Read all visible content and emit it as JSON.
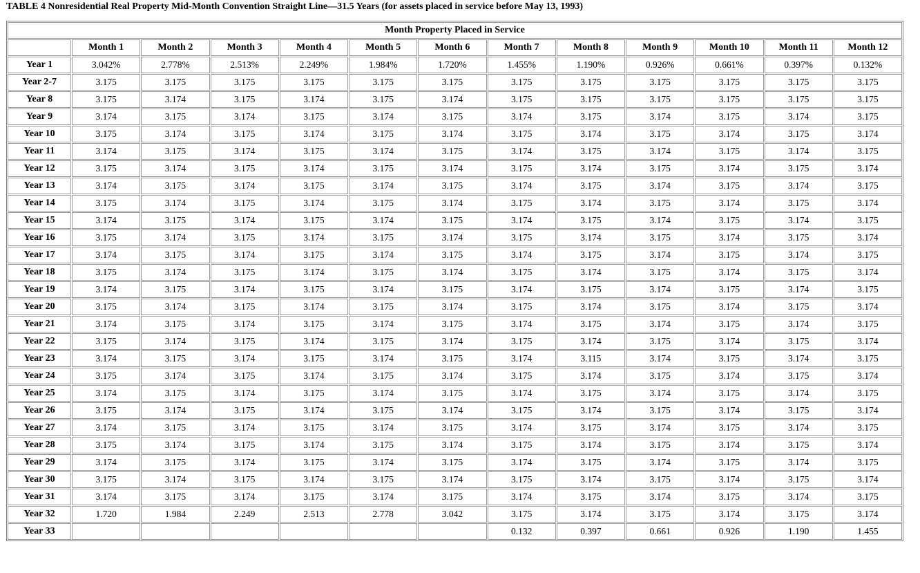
{
  "title": "TABLE 4 Nonresidential Real Property Mid-Month Convention Straight Line—31.5 Years (for assets placed in service before May 13, 1993)",
  "table": {
    "group_header": "Month Property Placed in Service",
    "columns": [
      "Month 1",
      "Month 2",
      "Month 3",
      "Month 4",
      "Month 5",
      "Month 6",
      "Month 7",
      "Month 8",
      "Month 9",
      "Month 10",
      "Month 11",
      "Month 12"
    ],
    "rows": [
      {
        "label": "Year 1",
        "cells": [
          "3.042%",
          "2.778%",
          "2.513%",
          "2.249%",
          "1.984%",
          "1.720%",
          "1.455%",
          "1.190%",
          "0.926%",
          "0.661%",
          "0.397%",
          "0.132%"
        ]
      },
      {
        "label": "Year 2-7",
        "cells": [
          "3.175",
          "3.175",
          "3.175",
          "3.175",
          "3.175",
          "3.175",
          "3.175",
          "3.175",
          "3.175",
          "3.175",
          "3.175",
          "3.175"
        ]
      },
      {
        "label": "Year 8",
        "cells": [
          "3.175",
          "3.174",
          "3.175",
          "3.174",
          "3.175",
          "3.174",
          "3.175",
          "3.175",
          "3.175",
          "3.175",
          "3.175",
          "3.175"
        ]
      },
      {
        "label": "Year 9",
        "cells": [
          "3.174",
          "3.175",
          "3.174",
          "3.175",
          "3.174",
          "3.175",
          "3.174",
          "3.175",
          "3.174",
          "3.175",
          "3.174",
          "3.175"
        ]
      },
      {
        "label": "Year 10",
        "cells": [
          "3.175",
          "3.174",
          "3.175",
          "3.174",
          "3.175",
          "3.174",
          "3.175",
          "3.174",
          "3.175",
          "3.174",
          "3.175",
          "3.174"
        ]
      },
      {
        "label": "Year 11",
        "cells": [
          "3.174",
          "3.175",
          "3.174",
          "3.175",
          "3.174",
          "3.175",
          "3.174",
          "3.175",
          "3.174",
          "3.175",
          "3.174",
          "3.175"
        ]
      },
      {
        "label": "Year 12",
        "cells": [
          "3.175",
          "3.174",
          "3.175",
          "3.174",
          "3.175",
          "3.174",
          "3.175",
          "3.174",
          "3.175",
          "3.174",
          "3.175",
          "3.174"
        ]
      },
      {
        "label": "Year 13",
        "cells": [
          "3.174",
          "3.175",
          "3.174",
          "3.175",
          "3.174",
          "3.175",
          "3.174",
          "3.175",
          "3.174",
          "3.175",
          "3.174",
          "3.175"
        ]
      },
      {
        "label": "Year 14",
        "cells": [
          "3.175",
          "3.174",
          "3.175",
          "3.174",
          "3.175",
          "3.174",
          "3.175",
          "3.174",
          "3.175",
          "3.174",
          "3.175",
          "3.174"
        ]
      },
      {
        "label": "Year 15",
        "cells": [
          "3.174",
          "3.175",
          "3.174",
          "3.175",
          "3.174",
          "3.175",
          "3.174",
          "3.175",
          "3.174",
          "3.175",
          "3.174",
          "3.175"
        ]
      },
      {
        "label": "Year 16",
        "cells": [
          "3.175",
          "3.174",
          "3.175",
          "3.174",
          "3.175",
          "3.174",
          "3.175",
          "3.174",
          "3.175",
          "3.174",
          "3.175",
          "3.174"
        ]
      },
      {
        "label": "Year 17",
        "cells": [
          "3.174",
          "3.175",
          "3.174",
          "3.175",
          "3.174",
          "3.175",
          "3.174",
          "3.175",
          "3.174",
          "3.175",
          "3.174",
          "3.175"
        ]
      },
      {
        "label": "Year 18",
        "cells": [
          "3.175",
          "3.174",
          "3.175",
          "3.174",
          "3.175",
          "3.174",
          "3.175",
          "3.174",
          "3.175",
          "3.174",
          "3.175",
          "3.174"
        ]
      },
      {
        "label": "Year 19",
        "cells": [
          "3.174",
          "3.175",
          "3.174",
          "3.175",
          "3.174",
          "3.175",
          "3.174",
          "3.175",
          "3.174",
          "3.175",
          "3.174",
          "3.175"
        ]
      },
      {
        "label": "Year 20",
        "cells": [
          "3.175",
          "3.174",
          "3.175",
          "3.174",
          "3.175",
          "3.174",
          "3.175",
          "3.174",
          "3.175",
          "3.174",
          "3.175",
          "3.174"
        ]
      },
      {
        "label": "Year 21",
        "cells": [
          "3.174",
          "3.175",
          "3.174",
          "3.175",
          "3.174",
          "3.175",
          "3.174",
          "3.175",
          "3.174",
          "3.175",
          "3.174",
          "3.175"
        ]
      },
      {
        "label": "Year 22",
        "cells": [
          "3.175",
          "3.174",
          "3.175",
          "3.174",
          "3.175",
          "3.174",
          "3.175",
          "3.174",
          "3.175",
          "3.174",
          "3.175",
          "3.174"
        ]
      },
      {
        "label": "Year 23",
        "cells": [
          "3.174",
          "3.175",
          "3.174",
          "3.175",
          "3.174",
          "3.175",
          "3.174",
          "3.115",
          "3.174",
          "3.175",
          "3.174",
          "3.175"
        ]
      },
      {
        "label": "Year 24",
        "cells": [
          "3.175",
          "3.174",
          "3.175",
          "3.174",
          "3.175",
          "3.174",
          "3.175",
          "3.174",
          "3.175",
          "3.174",
          "3.175",
          "3.174"
        ]
      },
      {
        "label": "Year 25",
        "cells": [
          "3.174",
          "3.175",
          "3.174",
          "3.175",
          "3.174",
          "3.175",
          "3.174",
          "3.175",
          "3.174",
          "3.175",
          "3.174",
          "3.175"
        ]
      },
      {
        "label": "Year 26",
        "cells": [
          "3.175",
          "3.174",
          "3.175",
          "3.174",
          "3.175",
          "3.174",
          "3.175",
          "3.174",
          "3.175",
          "3.174",
          "3.175",
          "3.174"
        ]
      },
      {
        "label": "Year 27",
        "cells": [
          "3.174",
          "3.175",
          "3.174",
          "3.175",
          "3.174",
          "3.175",
          "3.174",
          "3.175",
          "3.174",
          "3.175",
          "3.174",
          "3.175"
        ]
      },
      {
        "label": "Year 28",
        "cells": [
          "3.175",
          "3.174",
          "3.175",
          "3.174",
          "3.175",
          "3.174",
          "3.175",
          "3.174",
          "3.175",
          "3.174",
          "3.175",
          "3.174"
        ]
      },
      {
        "label": "Year 29",
        "cells": [
          "3.174",
          "3.175",
          "3.174",
          "3.175",
          "3.174",
          "3.175",
          "3.174",
          "3.175",
          "3.174",
          "3.175",
          "3.174",
          "3.175"
        ]
      },
      {
        "label": "Year 30",
        "cells": [
          "3.175",
          "3.174",
          "3.175",
          "3.174",
          "3.175",
          "3.174",
          "3.175",
          "3.174",
          "3.175",
          "3.174",
          "3.175",
          "3.174"
        ]
      },
      {
        "label": "Year 31",
        "cells": [
          "3.174",
          "3.175",
          "3.174",
          "3.175",
          "3.174",
          "3.175",
          "3.174",
          "3.175",
          "3.174",
          "3.175",
          "3.174",
          "3.175"
        ]
      },
      {
        "label": "Year 32",
        "cells": [
          "1.720",
          "1.984",
          "2.249",
          "2.513",
          "2.778",
          "3.042",
          "3.175",
          "3.174",
          "3.175",
          "3.174",
          "3.175",
          "3.174"
        ]
      },
      {
        "label": "Year 33",
        "cells": [
          null,
          null,
          null,
          null,
          null,
          null,
          "0.132",
          "0.397",
          "0.661",
          "0.926",
          "1.190",
          "1.455"
        ]
      }
    ]
  }
}
